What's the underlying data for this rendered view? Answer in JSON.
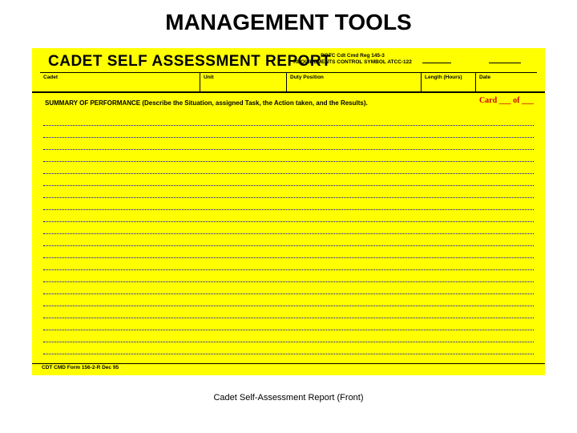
{
  "page_title": "MANAGEMENT TOOLS",
  "form": {
    "title": "CADET SELF ASSESSMENT REPORT",
    "reg_line1": "ROTC Cdt Cmd Reg 145-3",
    "reg_line2": "REQUIREMENTS CONTROL SYMBOL ATCC-122",
    "fields": {
      "cadet": "Cadet",
      "unit": "Unit",
      "duty": "Duty Position",
      "length": "Length (Hours)",
      "date": "Date"
    },
    "summary_label": "SUMMARY OF PERFORMANCE (Describe the Situation, assigned Task, the Action taken, and the Results).",
    "card_of": "Card ___ of ___",
    "footer": "CDT CMD Form 156-2-R Dec 95",
    "line_count": 20
  },
  "caption": "Cadet Self-Assessment Report (Front)",
  "colors": {
    "card_bg": "#ffff00",
    "dotline": "#0000d0",
    "card_of": "#d00000"
  }
}
